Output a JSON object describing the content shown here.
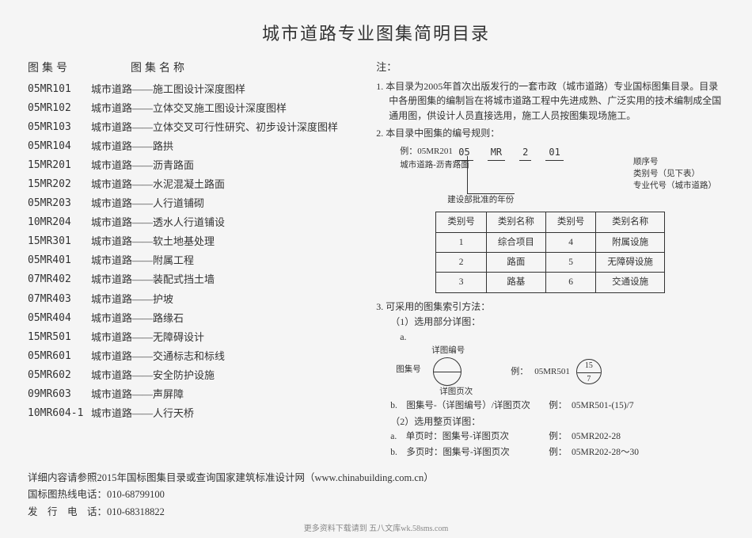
{
  "title": "城市道路专业图集简明目录",
  "left": {
    "hdr_code": "图集号",
    "hdr_name": "图集名称",
    "items": [
      {
        "code": "05MR101",
        "name": "城市道路——施工图设计深度图样"
      },
      {
        "code": "05MR102",
        "name": "城市道路——立体交叉施工图设计深度图样"
      },
      {
        "code": "05MR103",
        "name": "城市道路——立体交叉可行性研究、初步设计深度图样"
      },
      {
        "code": "05MR104",
        "name": "城市道路——路拱"
      },
      {
        "code": "15MR201",
        "name": "城市道路——沥青路面"
      },
      {
        "code": "15MR202",
        "name": "城市道路——水泥混凝土路面"
      },
      {
        "code": "05MR203",
        "name": "城市道路——人行道铺砌"
      },
      {
        "code": "10MR204",
        "name": "城市道路——透水人行道铺设"
      },
      {
        "code": "15MR301",
        "name": "城市道路——软土地基处理"
      },
      {
        "code": "05MR401",
        "name": "城市道路——附属工程"
      },
      {
        "code": "07MR402",
        "name": "城市道路——装配式挡土墙"
      },
      {
        "code": "07MR403",
        "name": "城市道路——护坡"
      },
      {
        "code": "05MR404",
        "name": "城市道路——路缘石"
      },
      {
        "code": "15MR501",
        "name": "城市道路——无障碍设计"
      },
      {
        "code": "05MR601",
        "name": "城市道路——交通标志和标线"
      },
      {
        "code": "05MR602",
        "name": "城市道路——安全防护设施"
      },
      {
        "code": "09MR603",
        "name": "城市道路——声屏障"
      },
      {
        "code": "10MR604-1",
        "name": "城市道路——人行天桥"
      }
    ]
  },
  "notes": {
    "header": "注：",
    "note1": "1. 本目录为2005年首次出版发行的一套市政（城市道路）专业国标图集目录。目录中各册图集的编制旨在将城市道路工程中先进成熟、广泛实用的技术编制成全国通用图，供设计人员直接选用，施工人员按图集现场施工。",
    "note2": "2. 本目录中图集的编号规则：",
    "code_example_label": "例：05MR201",
    "code_sub": "城市道路-沥青路面",
    "code_parts": {
      "p1": "05",
      "p2": "MR",
      "p3": "2",
      "p4": "01"
    },
    "code_labels": {
      "l1": "顺序号",
      "l2": "类别号（见下表）",
      "l3": "专业代号（城市道路）"
    },
    "code_bottom": "建设部批准的年份",
    "cat_table": {
      "headers": [
        "类别号",
        "类别名称",
        "类别号",
        "类别名称"
      ],
      "rows": [
        [
          "1",
          "综合项目",
          "4",
          "附属设施"
        ],
        [
          "2",
          "路面",
          "5",
          "无障碍设施"
        ],
        [
          "3",
          "路基",
          "6",
          "交通设施"
        ]
      ]
    },
    "note3": "3. 可采用的图集索引方法：",
    "m1": "（1）选用部分详图：",
    "m1a": "a.",
    "diag_top": "详图编号",
    "diag_left": "图集号",
    "diag_bottom": "详图页次",
    "diag_ex_label": "例：",
    "diag_ex_code": "05MR501",
    "diag_ex_top": "15",
    "diag_ex_bot": "7",
    "m1b_label": "b.　图集号-（详图编号）/详图页次",
    "m1b_ex": "例：　05MR501-(15)/7",
    "m2": "（2）选用整页详图：",
    "m2a_label": "a.　单页时：图集号-详图页次",
    "m2a_ex": "例：　05MR202-28",
    "m2b_label": "b.　多页时：图集号-详图页次",
    "m2b_ex": "例：　05MR202-28～30"
  },
  "footer": {
    "line1": "详细内容请参照2015年国标图集目录或查询国家建筑标准设计网（www.chinabuilding.com.cn）",
    "line2": "国标图热线电话：010-68799100",
    "line3": "发　行　电　话：010-68318822"
  },
  "watermark": "更多资料下载请到 五八文库wk.58sms.com"
}
